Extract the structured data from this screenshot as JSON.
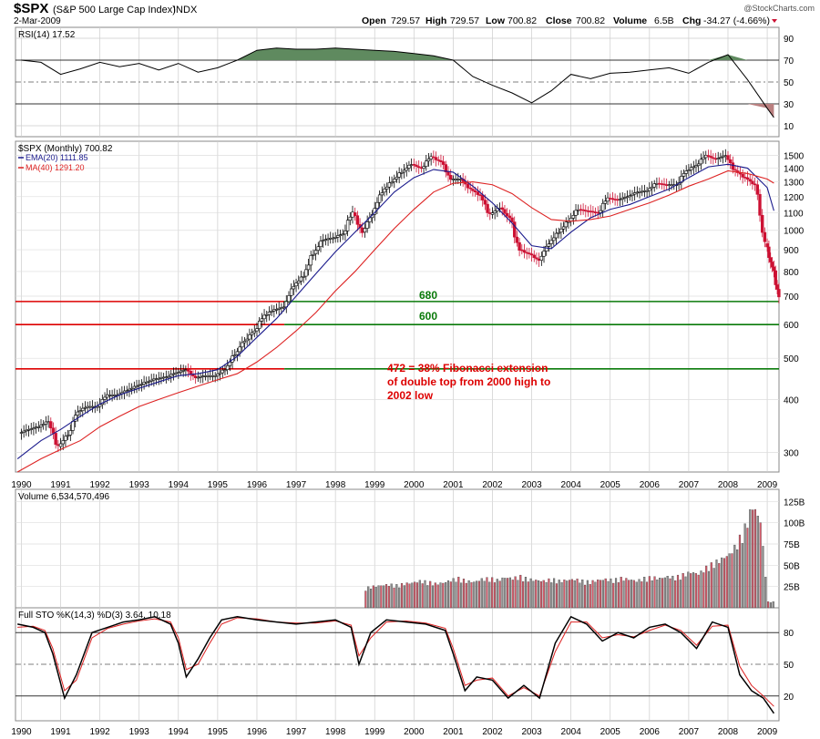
{
  "header": {
    "symbol": "$SPX",
    "name": "(S&P 500 Large Cap Index)",
    "exchange": "INDX",
    "date": "2-Mar-2009",
    "watermark": "@StockCharts.com",
    "open_label": "Open",
    "open_value": "729.57",
    "high_label": "High",
    "high_value": "729.57",
    "low_label": "Low",
    "low_value": "700.82",
    "close_label": "Close",
    "close_value": "700.82",
    "volume_label": "Volume",
    "volume_value": "6.5B",
    "chg_label": "Chg",
    "chg_value": "-34.27 (-4.66%)"
  },
  "colors": {
    "up": "#000000",
    "down": "#cc1133",
    "ema": "#1a1a8c",
    "ma": "#dd2222",
    "rsi_fill": "#5f8a5f",
    "rsi_fill_low": "#b97f7f",
    "vol_up": "#8c8c8c",
    "vol_down": "#d65a6a",
    "green_line": "#0a7a0a",
    "red_line": "#dd0000",
    "annot_red": "#dd0000",
    "annot_green": "#0a7a0a"
  },
  "chart_data": [
    {
      "type": "line",
      "panel": "rsi",
      "title": "RSI(14) 17.52",
      "y_ticks": [
        10,
        30,
        50,
        70,
        90
      ],
      "ylim": [
        0,
        100
      ],
      "x": [
        1990.0,
        1990.5,
        1991.0,
        1991.5,
        1992.0,
        1992.5,
        1993.0,
        1993.5,
        1994.0,
        1994.5,
        1995.0,
        1995.5,
        1996.0,
        1996.5,
        1997.0,
        1997.5,
        1998.0,
        1998.5,
        1999.0,
        1999.5,
        2000.0,
        2000.5,
        2001.0,
        2001.5,
        2002.0,
        2002.5,
        2003.0,
        2003.5,
        2004.0,
        2004.5,
        2005.0,
        2005.5,
        2006.0,
        2006.5,
        2007.0,
        2007.5,
        2008.0,
        2008.5,
        2009.0,
        2009.17
      ],
      "values": [
        70,
        68,
        57,
        62,
        68,
        64,
        67,
        61,
        67,
        59,
        63,
        70,
        79,
        81,
        80,
        80,
        81,
        80,
        79,
        78,
        76,
        74,
        70,
        55,
        47,
        40,
        31,
        42,
        57,
        53,
        58,
        59,
        61,
        63,
        58,
        68,
        75,
        52,
        26,
        17.5
      ]
    },
    {
      "type": "candlestick",
      "panel": "price",
      "title": "$SPX (Monthly) 700.82",
      "scale": "log",
      "ylim": [
        270,
        1620
      ],
      "y_ticks": [
        300,
        400,
        500,
        600,
        700,
        800,
        900,
        1000,
        1100,
        1200,
        1300,
        1400,
        1500
      ],
      "x_ticks": [
        "1990",
        "1991",
        "1992",
        "1993",
        "1994",
        "1995",
        "1996",
        "1997",
        "1998",
        "1999",
        "2000",
        "2001",
        "2002",
        "2003",
        "2004",
        "2005",
        "2006",
        "2007",
        "2008",
        "2009"
      ],
      "series": [
        {
          "name": "EMA(20) 1111.85",
          "type": "line",
          "x": [
            1989.9,
            1990.5,
            1991.0,
            1991.5,
            1992.0,
            1992.5,
            1993.0,
            1993.5,
            1994.0,
            1994.5,
            1995.0,
            1995.5,
            1996.0,
            1996.5,
            1997.0,
            1997.5,
            1998.0,
            1998.5,
            1999.0,
            1999.5,
            2000.0,
            2000.5,
            2001.0,
            2001.5,
            2002.0,
            2002.5,
            2003.0,
            2003.5,
            2004.0,
            2004.5,
            2005.0,
            2005.5,
            2006.0,
            2006.5,
            2007.0,
            2007.5,
            2008.0,
            2008.5,
            2009.0,
            2009.17
          ],
          "values": [
            290,
            320,
            340,
            365,
            390,
            410,
            425,
            440,
            455,
            460,
            470,
            505,
            560,
            620,
            700,
            790,
            890,
            990,
            1100,
            1230,
            1330,
            1390,
            1370,
            1270,
            1160,
            1040,
            920,
            905,
            990,
            1070,
            1120,
            1150,
            1200,
            1250,
            1330,
            1410,
            1430,
            1400,
            1260,
            1112
          ]
        },
        {
          "name": "MA(40) 1291.20",
          "type": "line",
          "x": [
            1989.9,
            1990.5,
            1991.0,
            1991.5,
            1992.0,
            1992.5,
            1993.0,
            1993.5,
            1994.0,
            1994.5,
            1995.0,
            1995.5,
            1996.0,
            1996.5,
            1997.0,
            1997.5,
            1998.0,
            1998.5,
            1999.0,
            1999.5,
            2000.0,
            2000.5,
            2001.0,
            2001.5,
            2002.0,
            2002.5,
            2003.0,
            2003.5,
            2004.0,
            2004.5,
            2005.0,
            2005.5,
            2006.0,
            2006.5,
            2007.0,
            2007.5,
            2008.0,
            2008.5,
            2009.0,
            2009.17
          ],
          "values": [
            270,
            290,
            305,
            320,
            345,
            365,
            385,
            400,
            415,
            430,
            445,
            460,
            490,
            530,
            580,
            640,
            720,
            800,
            900,
            1010,
            1120,
            1230,
            1290,
            1300,
            1280,
            1220,
            1130,
            1060,
            1050,
            1060,
            1080,
            1120,
            1160,
            1210,
            1270,
            1320,
            1380,
            1360,
            1320,
            1291
          ]
        },
        {
          "name": "close",
          "type": "candles",
          "x": [
            1990.0,
            1990.25,
            1990.5,
            1990.75,
            1991.0,
            1991.25,
            1991.5,
            1991.75,
            1992.0,
            1992.25,
            1992.5,
            1992.75,
            1993.0,
            1993.25,
            1993.5,
            1993.75,
            1994.0,
            1994.25,
            1994.5,
            1994.75,
            1995.0,
            1995.25,
            1995.5,
            1995.75,
            1996.0,
            1996.25,
            1996.5,
            1996.75,
            1997.0,
            1997.25,
            1997.5,
            1997.75,
            1998.0,
            1998.25,
            1998.5,
            1998.75,
            1999.0,
            1999.25,
            1999.5,
            1999.75,
            2000.0,
            2000.25,
            2000.5,
            2000.75,
            2001.0,
            2001.25,
            2001.5,
            2001.75,
            2002.0,
            2002.25,
            2002.5,
            2002.75,
            2003.0,
            2003.25,
            2003.5,
            2003.75,
            2004.0,
            2004.25,
            2004.5,
            2004.75,
            2005.0,
            2005.25,
            2005.5,
            2005.75,
            2006.0,
            2006.25,
            2006.5,
            2006.75,
            2007.0,
            2007.25,
            2007.5,
            2007.75,
            2008.0,
            2008.25,
            2008.5,
            2008.75,
            2009.0,
            2009.17
          ],
          "values": [
            340,
            345,
            355,
            310,
            330,
            375,
            385,
            385,
            410,
            410,
            420,
            430,
            440,
            448,
            452,
            462,
            470,
            450,
            455,
            455,
            470,
            510,
            550,
            580,
            630,
            650,
            660,
            740,
            780,
            880,
            950,
            960,
            980,
            1100,
            990,
            1090,
            1230,
            1300,
            1370,
            1430,
            1400,
            1490,
            1450,
            1320,
            1320,
            1250,
            1210,
            1090,
            1130,
            1070,
            900,
            880,
            850,
            930,
            990,
            1050,
            1120,
            1110,
            1100,
            1190,
            1180,
            1200,
            1230,
            1240,
            1290,
            1280,
            1280,
            1380,
            1420,
            1500,
            1470,
            1500,
            1380,
            1330,
            1280,
            930,
            820,
            700.82
          ]
        }
      ],
      "annotations": [
        {
          "text": "680",
          "value": 680
        },
        {
          "text": "600",
          "value": 600
        },
        {
          "text": "472 = 38% Fibonacci extension",
          "value": 472
        },
        {
          "text": "of double top from 2000 high to"
        },
        {
          "text": "2002 low"
        }
      ],
      "horizontal_lines": [
        680,
        600,
        472
      ]
    },
    {
      "type": "bar",
      "panel": "volume",
      "title": "Volume 6,534,570,496",
      "y_ticks": [
        "25B",
        "50B",
        "75B",
        "100B",
        "125B"
      ],
      "ylim": [
        0,
        135
      ],
      "x": [
        1998.8,
        1999.0,
        1999.2,
        1999.4,
        1999.6,
        1999.8,
        2000.0,
        2000.2,
        2000.4,
        2000.6,
        2000.8,
        2001.0,
        2001.2,
        2001.4,
        2001.6,
        2001.8,
        2002.0,
        2002.2,
        2002.4,
        2002.6,
        2002.8,
        2003.0,
        2003.2,
        2003.4,
        2003.6,
        2003.8,
        2004.0,
        2004.2,
        2004.4,
        2004.6,
        2004.8,
        2005.0,
        2005.2,
        2005.4,
        2005.6,
        2005.8,
        2006.0,
        2006.2,
        2006.4,
        2006.6,
        2006.8,
        2007.0,
        2007.2,
        2007.4,
        2007.6,
        2007.8,
        2008.0,
        2008.2,
        2008.4,
        2008.6,
        2008.8,
        2009.0,
        2009.17
      ],
      "values": [
        22,
        24,
        25,
        26,
        25,
        27,
        28,
        30,
        29,
        27,
        28,
        31,
        33,
        30,
        29,
        32,
        33,
        31,
        34,
        33,
        35,
        32,
        31,
        30,
        32,
        30,
        31,
        32,
        30,
        29,
        31,
        32,
        31,
        33,
        32,
        30,
        33,
        34,
        33,
        35,
        34,
        37,
        40,
        38,
        45,
        50,
        55,
        60,
        72,
        90,
        115,
        98,
        6.5
      ]
    },
    {
      "type": "line",
      "panel": "stochastic",
      "title": "Full STO %K(14,3) %D(3) 3.64, 10.18",
      "y_ticks": [
        20,
        50,
        80
      ],
      "ylim": [
        0,
        100
      ],
      "x": [
        1989.9,
        1990.3,
        1990.6,
        1990.8,
        1991.1,
        1991.4,
        1991.8,
        1992.2,
        1992.6,
        1993.0,
        1993.4,
        1993.8,
        1994.0,
        1994.2,
        1994.5,
        1994.8,
        1995.1,
        1995.5,
        1996.0,
        1996.5,
        1997.0,
        1997.5,
        1998.0,
        1998.4,
        1998.6,
        1998.9,
        1999.3,
        1999.8,
        2000.3,
        2000.8,
        2001.0,
        2001.3,
        2001.6,
        2002.0,
        2002.4,
        2002.8,
        2003.2,
        2003.6,
        2004.0,
        2004.4,
        2004.8,
        2005.2,
        2005.6,
        2006.0,
        2006.4,
        2006.8,
        2007.2,
        2007.6,
        2008.0,
        2008.3,
        2008.6,
        2008.9,
        2009.17
      ],
      "series": [
        {
          "name": "%K",
          "values": [
            88,
            85,
            80,
            60,
            18,
            40,
            80,
            85,
            90,
            92,
            95,
            88,
            70,
            38,
            55,
            75,
            92,
            95,
            92,
            90,
            88,
            90,
            92,
            85,
            50,
            80,
            92,
            90,
            88,
            82,
            60,
            25,
            38,
            35,
            18,
            30,
            18,
            70,
            95,
            88,
            72,
            80,
            75,
            85,
            88,
            80,
            65,
            90,
            85,
            40,
            25,
            18,
            3.64
          ]
        },
        {
          "name": "%D",
          "values": [
            85,
            86,
            82,
            65,
            25,
            35,
            75,
            84,
            88,
            91,
            93,
            90,
            75,
            45,
            50,
            70,
            88,
            94,
            93,
            90,
            89,
            89,
            91,
            87,
            58,
            75,
            90,
            91,
            89,
            84,
            65,
            30,
            35,
            37,
            20,
            28,
            20,
            62,
            90,
            90,
            75,
            78,
            76,
            82,
            87,
            82,
            68,
            86,
            87,
            48,
            30,
            20,
            10.18
          ]
        }
      ],
      "x_ticks": [
        "1990",
        "1991",
        "1992",
        "1993",
        "1994",
        "1995",
        "1996",
        "1997",
        "1998",
        "1999",
        "2000",
        "2001",
        "2002",
        "2003",
        "2004",
        "2005",
        "2006",
        "2007",
        "2008",
        "2009"
      ]
    }
  ]
}
